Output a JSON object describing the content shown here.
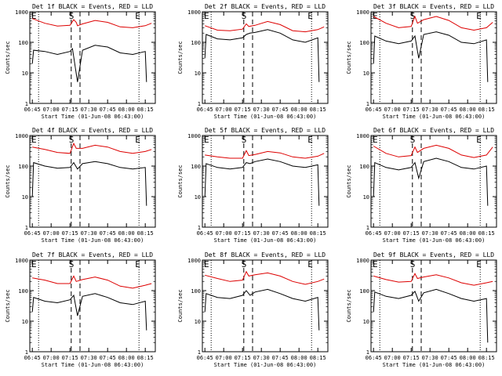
{
  "figure": {
    "background": "#ffffff",
    "colors": {
      "events": "#000000",
      "lld": "#dd0000",
      "axes": "#000000"
    }
  },
  "chart_data": [
    {
      "type": "line",
      "title": "Det 1f BLACK = Events, RED = LLD",
      "xlabel": "Start Time (01-Jun-08 06:43:00)",
      "ylabel": "Counts/sec",
      "yscale": "log",
      "ylim": [
        1,
        1000
      ],
      "xlim": [
        "06:43",
        "08:23"
      ],
      "x_ticklabels": [
        "06:45",
        "07:00",
        "07:15",
        "07:30",
        "07:45",
        "08:00",
        "08:15"
      ],
      "y_ticklabels": [
        "1",
        "10",
        "100",
        "1000"
      ],
      "markers": [
        "E",
        "S",
        "E"
      ],
      "series": [
        {
          "name": "LLD",
          "color": "#dd0000",
          "x": [
            "06:45",
            "06:55",
            "07:05",
            "07:15",
            "07:18",
            "07:20",
            "07:21",
            "07:25",
            "07:35",
            "07:45",
            "07:55",
            "08:05",
            "08:15",
            "08:20"
          ],
          "values": [
            600,
            420,
            340,
            360,
            550,
            450,
            350,
            400,
            520,
            450,
            320,
            300,
            350,
            420
          ]
        },
        {
          "name": "Events",
          "color": "#000000",
          "x": [
            "06:45",
            "06:46",
            "06:55",
            "07:05",
            "07:15",
            "07:17",
            "07:21",
            "07:25",
            "07:35",
            "07:45",
            "07:55",
            "08:05",
            "08:15",
            "08:16"
          ],
          "values": [
            20,
            55,
            50,
            40,
            50,
            62,
            5,
            55,
            80,
            70,
            45,
            40,
            50,
            5
          ]
        }
      ]
    },
    {
      "type": "line",
      "title": "Det 2f BLACK = Events, RED = LLD",
      "xlabel": "Start Time (01-Jun-08 06:43:00)",
      "ylabel": "Counts/sec",
      "yscale": "log",
      "ylim": [
        1,
        1000
      ],
      "xlim": [
        "06:43",
        "08:23"
      ],
      "x_ticklabels": [
        "06:45",
        "07:00",
        "07:15",
        "07:30",
        "07:45",
        "08:00",
        "08:15"
      ],
      "y_ticklabels": [
        "1",
        "10",
        "100",
        "1000"
      ],
      "markers": [
        "E",
        "S",
        "E"
      ],
      "series": [
        {
          "name": "LLD",
          "color": "#dd0000",
          "x": [
            "06:45",
            "06:55",
            "07:05",
            "07:15",
            "07:18",
            "07:20",
            "07:25",
            "07:35",
            "07:45",
            "07:55",
            "08:05",
            "08:15",
            "08:20"
          ],
          "values": [
            350,
            250,
            240,
            270,
            400,
            330,
            360,
            480,
            380,
            240,
            220,
            260,
            320
          ]
        },
        {
          "name": "Events",
          "color": "#000000",
          "x": [
            "06:45",
            "06:46",
            "06:55",
            "07:05",
            "07:15",
            "07:18",
            "07:21",
            "07:25",
            "07:35",
            "07:45",
            "07:55",
            "08:05",
            "08:15",
            "08:16"
          ],
          "values": [
            30,
            180,
            130,
            120,
            140,
            180,
            200,
            210,
            260,
            200,
            120,
            100,
            140,
            5
          ]
        }
      ]
    },
    {
      "type": "line",
      "title": "Det 3f BLACK = Events, RED = LLD",
      "xlabel": "Start Time (01-Jun-08 06:43:00)",
      "ylabel": "Counts/sec",
      "yscale": "log",
      "ylim": [
        1,
        1000
      ],
      "xlim": [
        "06:43",
        "08:23"
      ],
      "x_ticklabels": [
        "06:45",
        "07:00",
        "07:15",
        "07:30",
        "07:45",
        "08:00",
        "08:15"
      ],
      "y_ticklabels": [
        "1",
        "10",
        "100",
        "1000"
      ],
      "markers": [
        "E",
        "S",
        "E"
      ],
      "series": [
        {
          "name": "LLD",
          "color": "#dd0000",
          "x": [
            "06:45",
            "06:55",
            "07:05",
            "07:15",
            "07:18",
            "07:20",
            "07:25",
            "07:35",
            "07:45",
            "07:55",
            "08:05",
            "08:15",
            "08:20"
          ],
          "values": [
            700,
            420,
            300,
            330,
            700,
            420,
            550,
            700,
            520,
            300,
            250,
            300,
            450
          ]
        },
        {
          "name": "Events",
          "color": "#000000",
          "x": [
            "06:45",
            "06:46",
            "06:55",
            "07:05",
            "07:15",
            "07:18",
            "07:21",
            "07:25",
            "07:35",
            "07:45",
            "07:55",
            "08:05",
            "08:15",
            "08:16"
          ],
          "values": [
            20,
            160,
            110,
            90,
            110,
            160,
            30,
            180,
            220,
            170,
            100,
            90,
            120,
            5
          ]
        }
      ]
    },
    {
      "type": "line",
      "title": "Det 4f BLACK = Events, RED = LLD",
      "xlabel": "Start Time (01-Jun-08 06:43:00)",
      "ylabel": "Counts/sec",
      "yscale": "log",
      "ylim": [
        1,
        1000
      ],
      "xlim": [
        "06:43",
        "08:23"
      ],
      "x_ticklabels": [
        "06:45",
        "07:00",
        "07:15",
        "07:30",
        "07:45",
        "08:00",
        "08:15"
      ],
      "y_ticklabels": [
        "1",
        "10",
        "100",
        "1000"
      ],
      "markers": [
        "E",
        "S",
        "E"
      ],
      "series": [
        {
          "name": "LLD",
          "color": "#dd0000",
          "x": [
            "06:45",
            "06:55",
            "07:05",
            "07:15",
            "07:18",
            "07:20",
            "07:25",
            "07:35",
            "07:45",
            "07:55",
            "08:05",
            "08:15",
            "08:20"
          ],
          "values": [
            420,
            350,
            280,
            260,
            550,
            380,
            380,
            480,
            420,
            300,
            260,
            300,
            350
          ]
        },
        {
          "name": "Events",
          "color": "#000000",
          "x": [
            "06:45",
            "06:46",
            "06:55",
            "07:05",
            "07:15",
            "07:18",
            "07:21",
            "07:25",
            "07:35",
            "07:45",
            "07:55",
            "08:05",
            "08:15",
            "08:16"
          ],
          "values": [
            10,
            130,
            100,
            85,
            90,
            130,
            80,
            120,
            140,
            120,
            90,
            80,
            90,
            5
          ]
        }
      ]
    },
    {
      "type": "line",
      "title": "Det 5f BLACK = Events, RED = LLD",
      "xlabel": "Start Time (01-Jun-08 06:43:00)",
      "ylabel": "Counts/sec",
      "yscale": "log",
      "ylim": [
        1,
        1000
      ],
      "xlim": [
        "06:43",
        "08:23"
      ],
      "x_ticklabels": [
        "06:45",
        "07:00",
        "07:15",
        "07:30",
        "07:45",
        "08:00",
        "08:15"
      ],
      "y_ticklabels": [
        "1",
        "10",
        "100",
        "1000"
      ],
      "markers": [
        "E",
        "S",
        "E"
      ],
      "series": [
        {
          "name": "LLD",
          "color": "#dd0000",
          "x": [
            "06:45",
            "06:55",
            "07:05",
            "07:15",
            "07:18",
            "07:20",
            "07:25",
            "07:35",
            "07:45",
            "07:55",
            "08:05",
            "08:15",
            "08:20"
          ],
          "values": [
            230,
            200,
            180,
            180,
            320,
            220,
            240,
            300,
            270,
            200,
            180,
            210,
            260
          ]
        },
        {
          "name": "Events",
          "color": "#000000",
          "x": [
            "06:45",
            "06:46",
            "06:55",
            "07:05",
            "07:15",
            "07:18",
            "07:21",
            "07:25",
            "07:35",
            "07:45",
            "07:55",
            "08:05",
            "08:15",
            "08:16"
          ],
          "values": [
            10,
            120,
            90,
            80,
            90,
            130,
            120,
            140,
            170,
            140,
            100,
            90,
            110,
            5
          ]
        }
      ]
    },
    {
      "type": "line",
      "title": "Det 6f BLACK = Events, RED = LLD",
      "xlabel": "Start Time (01-Jun-08 06:43:00)",
      "ylabel": "Counts/sec",
      "yscale": "log",
      "ylim": [
        1,
        1000
      ],
      "xlim": [
        "06:43",
        "08:23"
      ],
      "x_ticklabels": [
        "06:45",
        "07:00",
        "07:15",
        "07:30",
        "07:45",
        "08:00",
        "08:15"
      ],
      "y_ticklabels": [
        "1",
        "10",
        "100",
        "1000"
      ],
      "markers": [
        "E",
        "S",
        "E"
      ],
      "series": [
        {
          "name": "LLD",
          "color": "#dd0000",
          "x": [
            "06:45",
            "06:55",
            "07:05",
            "07:15",
            "07:18",
            "07:20",
            "07:25",
            "07:35",
            "07:45",
            "07:55",
            "08:05",
            "08:15",
            "08:20"
          ],
          "values": [
            450,
            260,
            200,
            220,
            420,
            280,
            380,
            480,
            380,
            230,
            190,
            230,
            420
          ]
        },
        {
          "name": "Events",
          "color": "#000000",
          "x": [
            "06:45",
            "06:46",
            "06:55",
            "07:05",
            "07:15",
            "07:18",
            "07:21",
            "07:25",
            "07:35",
            "07:45",
            "07:55",
            "08:05",
            "08:15",
            "08:16"
          ],
          "values": [
            10,
            130,
            90,
            75,
            90,
            130,
            40,
            140,
            180,
            140,
            90,
            80,
            100,
            5
          ]
        }
      ]
    },
    {
      "type": "line",
      "title": "Det 7f BLACK = Events, RED = LLD",
      "xlabel": "Start Time (01-Jun-08 06:43:00)",
      "ylabel": "Counts/sec",
      "yscale": "log",
      "ylim": [
        1,
        1000
      ],
      "xlim": [
        "06:43",
        "08:23"
      ],
      "x_ticklabels": [
        "06:45",
        "07:00",
        "07:15",
        "07:30",
        "07:45",
        "08:00",
        "08:15"
      ],
      "y_ticklabels": [
        "1",
        "10",
        "100",
        "1000"
      ],
      "markers": [
        "E",
        "S",
        "E"
      ],
      "series": [
        {
          "name": "LLD",
          "color": "#dd0000",
          "x": [
            "06:45",
            "06:55",
            "07:05",
            "07:15",
            "07:18",
            "07:20",
            "07:25",
            "07:35",
            "07:45",
            "07:55",
            "08:05",
            "08:15",
            "08:20"
          ],
          "values": [
            260,
            220,
            170,
            170,
            300,
            200,
            230,
            280,
            220,
            140,
            120,
            150,
            170
          ]
        },
        {
          "name": "Events",
          "color": "#000000",
          "x": [
            "06:45",
            "06:46",
            "06:55",
            "07:05",
            "07:15",
            "07:18",
            "07:21",
            "07:25",
            "07:35",
            "07:45",
            "07:55",
            "08:05",
            "08:15",
            "08:16"
          ],
          "values": [
            20,
            60,
            45,
            40,
            50,
            70,
            15,
            65,
            80,
            60,
            40,
            35,
            45,
            5
          ]
        }
      ]
    },
    {
      "type": "line",
      "title": "Det 8f BLACK = Events, RED = LLD",
      "xlabel": "Start Time (01-Jun-08 06:43:00)",
      "ylabel": "Counts/sec",
      "yscale": "log",
      "ylim": [
        1,
        1000
      ],
      "xlim": [
        "06:43",
        "08:23"
      ],
      "x_ticklabels": [
        "06:45",
        "07:00",
        "07:15",
        "07:30",
        "07:45",
        "08:00",
        "08:15"
      ],
      "y_ticklabels": [
        "1",
        "10",
        "100",
        "1000"
      ],
      "markers": [
        "E",
        "S",
        "E"
      ],
      "series": [
        {
          "name": "LLD",
          "color": "#dd0000",
          "x": [
            "06:45",
            "06:55",
            "07:05",
            "07:15",
            "07:18",
            "07:20",
            "07:25",
            "07:35",
            "07:45",
            "07:55",
            "08:05",
            "08:15",
            "08:20"
          ],
          "values": [
            320,
            250,
            200,
            220,
            420,
            300,
            330,
            380,
            300,
            200,
            160,
            200,
            240
          ]
        },
        {
          "name": "Events",
          "color": "#000000",
          "x": [
            "06:45",
            "06:46",
            "06:55",
            "07:05",
            "07:15",
            "07:18",
            "07:21",
            "07:25",
            "07:35",
            "07:45",
            "07:55",
            "08:05",
            "08:15",
            "08:16"
          ],
          "values": [
            20,
            80,
            60,
            55,
            70,
            100,
            70,
            90,
            110,
            80,
            55,
            45,
            60,
            5
          ]
        }
      ]
    },
    {
      "type": "line",
      "title": "Det 9f BLACK = Events, RED = LLD",
      "xlabel": "Start Time (01-Jun-08 06:43:00)",
      "ylabel": "Counts/sec",
      "yscale": "log",
      "ylim": [
        1,
        1000
      ],
      "xlim": [
        "06:43",
        "08:23"
      ],
      "x_ticklabels": [
        "06:45",
        "07:00",
        "07:15",
        "07:30",
        "07:45",
        "08:00",
        "08:15"
      ],
      "y_ticklabels": [
        "1",
        "10",
        "100",
        "1000"
      ],
      "markers": [
        "E",
        "S",
        "E"
      ],
      "series": [
        {
          "name": "LLD",
          "color": "#dd0000",
          "x": [
            "06:45",
            "06:55",
            "07:05",
            "07:15",
            "07:18",
            "07:20",
            "07:25",
            "07:35",
            "07:45",
            "07:55",
            "08:05",
            "08:15",
            "08:20"
          ],
          "values": [
            300,
            230,
            190,
            200,
            360,
            250,
            280,
            330,
            260,
            180,
            150,
            180,
            200
          ]
        },
        {
          "name": "Events",
          "color": "#000000",
          "x": [
            "06:45",
            "06:46",
            "06:55",
            "07:05",
            "07:15",
            "07:18",
            "07:21",
            "07:25",
            "07:35",
            "07:45",
            "07:55",
            "08:05",
            "08:15",
            "08:16"
          ],
          "values": [
            20,
            90,
            65,
            55,
            70,
            95,
            45,
            85,
            110,
            80,
            55,
            45,
            55,
            2
          ]
        }
      ]
    }
  ]
}
